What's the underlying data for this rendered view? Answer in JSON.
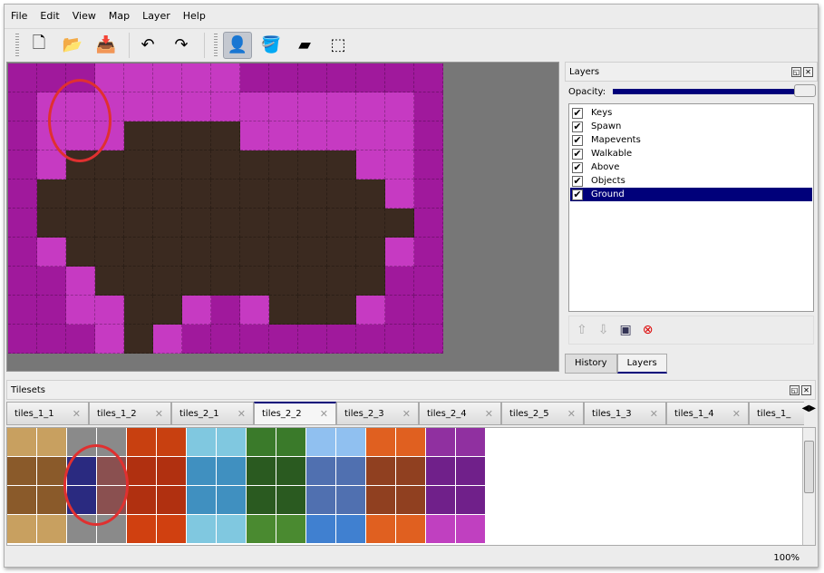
{
  "menu": [
    "File",
    "Edit",
    "View",
    "Map",
    "Layer",
    "Help"
  ],
  "toolbar": [
    {
      "name": "new-icon",
      "glyph": "🗋"
    },
    {
      "name": "open-icon",
      "glyph": "📂"
    },
    {
      "name": "save-icon",
      "glyph": "📥"
    },
    {
      "name": "undo-icon",
      "glyph": "↶"
    },
    {
      "name": "redo-icon",
      "glyph": "↷"
    },
    {
      "name": "stamp-brush-icon",
      "glyph": "👤",
      "active": true
    },
    {
      "name": "bucket-fill-icon",
      "glyph": "🪣"
    },
    {
      "name": "eraser-icon",
      "glyph": "▰"
    },
    {
      "name": "rect-select-icon",
      "glyph": "⬚"
    }
  ],
  "map": {
    "rows": [
      "MMMPPPPPMMMMMMM",
      "MPPPPPPPPPPPPPM",
      "MPPPDDDDPPPPPPM",
      "MPDDDDDDDDDDPPM",
      "MDDDDDDDDDDDDPM",
      "MDDDDDDDDDDDDDM",
      "MPDDDDDDDDDDDPM",
      "MMPDDDDDDDDDDMM",
      "MMPPDDPMPDDDPMM",
      "MMMPDPMMMMMMMMM"
    ],
    "palette": {
      "M": "#a0199c",
      "P": "#c63ac2",
      "D": "#3b2a20"
    }
  },
  "layers_panel": {
    "title": "Layers",
    "opacity_label": "Opacity:",
    "opacity": 100,
    "layers": [
      {
        "name": "Keys",
        "visible": true
      },
      {
        "name": "Spawn",
        "visible": true
      },
      {
        "name": "Mapevents",
        "visible": true
      },
      {
        "name": "Walkable",
        "visible": true
      },
      {
        "name": "Above",
        "visible": true
      },
      {
        "name": "Objects",
        "visible": true
      },
      {
        "name": "Ground",
        "visible": true,
        "selected": true
      }
    ],
    "tabs": [
      "History",
      "Layers"
    ],
    "active_tab": "Layers"
  },
  "tilesets": {
    "title": "Tilesets",
    "tabs": [
      "tiles_1_1",
      "tiles_1_2",
      "tiles_2_1",
      "tiles_2_2",
      "tiles_2_3",
      "tiles_2_4",
      "tiles_2_5",
      "tiles_1_3",
      "tiles_1_4",
      "tiles_1_"
    ],
    "active": "tiles_2_2",
    "columns": [
      [
        "#c8a060",
        "#8a5a2a",
        "#8a5a2a",
        "#c8a060"
      ],
      [
        "#c8a060",
        "#8a5a2a",
        "#8a5a2a",
        "#c8a060"
      ],
      [
        "#8a8a8a",
        "#2a2a80",
        "#2a2a80",
        "#8a8a8a"
      ],
      [
        "#8a8a8a",
        "#8a5050",
        "#8a5050",
        "#8a8a8a"
      ],
      [
        "#c84010",
        "#b03010",
        "#b03010",
        "#d04010"
      ],
      [
        "#c84010",
        "#b03010",
        "#b03010",
        "#d04010"
      ],
      [
        "#80c8e0",
        "#4090c0",
        "#4090c0",
        "#80c8e0"
      ],
      [
        "#80c8e0",
        "#4090c0",
        "#4090c0",
        "#80c8e0"
      ],
      [
        "#3a7a2a",
        "#2a5a20",
        "#2a5a20",
        "#4a8a30"
      ],
      [
        "#3a7a2a",
        "#2a5a20",
        "#2a5a20",
        "#4a8a30"
      ],
      [
        "#90c0f0",
        "#5070b0",
        "#5070b0",
        "#4080d0"
      ],
      [
        "#90c0f0",
        "#5070b0",
        "#5070b0",
        "#4080d0"
      ],
      [
        "#e06020",
        "#904020",
        "#904020",
        "#e06020"
      ],
      [
        "#e06020",
        "#904020",
        "#904020",
        "#e06020"
      ],
      [
        "#9030a0",
        "#70208a",
        "#70208a",
        "#c040c0"
      ],
      [
        "#9030a0",
        "#70208a",
        "#70208a",
        "#c040c0"
      ]
    ]
  },
  "status": {
    "zoom": "100%"
  }
}
